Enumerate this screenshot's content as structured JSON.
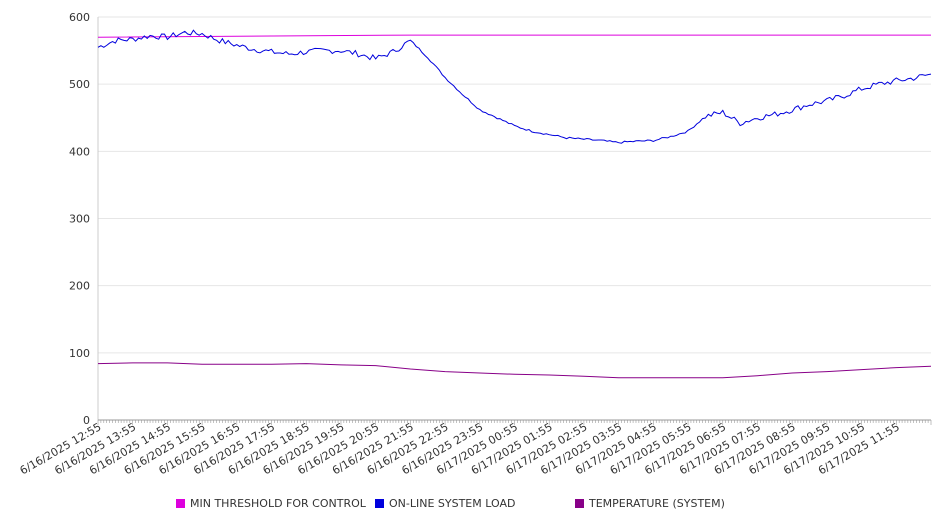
{
  "chart_data": {
    "type": "line",
    "title": "",
    "xlabel": "",
    "ylabel": "",
    "ylim": [
      0,
      600
    ],
    "y_ticks": [
      "0",
      "100",
      "200",
      "300",
      "400",
      "500",
      "600"
    ],
    "x_tick_labels": [
      "6/16/2025 12:55",
      "6/16/2025 13:55",
      "6/16/2025 14:55",
      "6/16/2025 15:55",
      "6/16/2025 16:55",
      "6/16/2025 17:55",
      "6/16/2025 18:55",
      "6/16/2025 19:55",
      "6/16/2025 20:55",
      "6/16/2025 21:55",
      "6/16/2025 22:55",
      "6/16/2025 23:55",
      "6/17/2025 00:55",
      "6/17/2025 01:55",
      "6/17/2025 02:55",
      "6/17/2025 03:55",
      "6/17/2025 04:55",
      "6/17/2025 05:55",
      "6/17/2025 06:55",
      "6/17/2025 07:55",
      "6/17/2025 08:55",
      "6/17/2025 09:55",
      "6/17/2025 10:55",
      "6/17/2025 11:55"
    ],
    "grid": true,
    "legend_position": "bottom",
    "series": [
      {
        "name": "MIN THRESHOLD FOR CONTROL",
        "color": "#dd00dd",
        "x": [
          "6/16/2025 12:55",
          "6/16/2025 21:55",
          "6/17/2025 12:55"
        ],
        "values": [
          570,
          573,
          573
        ]
      },
      {
        "name": "ON-LINE SYSTEM LOAD",
        "color": "#0000dd",
        "x": [
          "6/16/2025 12:55",
          "6/16/2025 13:25",
          "6/16/2025 13:55",
          "6/16/2025 14:25",
          "6/16/2025 14:55",
          "6/16/2025 15:25",
          "6/16/2025 15:55",
          "6/16/2025 16:25",
          "6/16/2025 16:55",
          "6/16/2025 17:25",
          "6/16/2025 17:55",
          "6/16/2025 18:25",
          "6/16/2025 18:55",
          "6/16/2025 19:25",
          "6/16/2025 19:55",
          "6/16/2025 20:25",
          "6/16/2025 20:55",
          "6/16/2025 21:25",
          "6/16/2025 21:55",
          "6/16/2025 22:25",
          "6/16/2025 22:55",
          "6/16/2025 23:25",
          "6/16/2025 23:55",
          "6/17/2025 00:25",
          "6/17/2025 00:55",
          "6/17/2025 01:25",
          "6/17/2025 01:55",
          "6/17/2025 02:25",
          "6/17/2025 02:55",
          "6/17/2025 03:25",
          "6/17/2025 03:55",
          "6/17/2025 04:25",
          "6/17/2025 04:55",
          "6/17/2025 05:25",
          "6/17/2025 05:55",
          "6/17/2025 06:25",
          "6/17/2025 06:55",
          "6/17/2025 07:25",
          "6/17/2025 07:55",
          "6/17/2025 08:25",
          "6/17/2025 08:55",
          "6/17/2025 09:25",
          "6/17/2025 09:55",
          "6/17/2025 10:25",
          "6/17/2025 10:55",
          "6/17/2025 11:25",
          "6/17/2025 11:55",
          "6/17/2025 12:25",
          "6/17/2025 12:55"
        ],
        "values": [
          555,
          565,
          567,
          572,
          570,
          577,
          575,
          565,
          558,
          552,
          548,
          545,
          548,
          550,
          550,
          545,
          538,
          548,
          565,
          540,
          510,
          485,
          462,
          450,
          438,
          430,
          425,
          420,
          418,
          416,
          413,
          415,
          416,
          422,
          430,
          452,
          458,
          442,
          450,
          455,
          462,
          470,
          475,
          483,
          493,
          500,
          505,
          509,
          515
        ]
      },
      {
        "name": "TEMPERATURE (SYSTEM)",
        "color": "#880088",
        "x": [
          "6/16/2025 12:55",
          "6/16/2025 13:55",
          "6/16/2025 14:55",
          "6/16/2025 15:55",
          "6/16/2025 16:55",
          "6/16/2025 17:55",
          "6/16/2025 18:55",
          "6/16/2025 19:55",
          "6/16/2025 20:55",
          "6/16/2025 21:55",
          "6/16/2025 22:55",
          "6/16/2025 23:55",
          "6/17/2025 00:55",
          "6/17/2025 01:55",
          "6/17/2025 02:55",
          "6/17/2025 03:55",
          "6/17/2025 04:55",
          "6/17/2025 05:55",
          "6/17/2025 06:55",
          "6/17/2025 07:55",
          "6/17/2025 08:55",
          "6/17/2025 09:55",
          "6/17/2025 10:55",
          "6/17/2025 11:55",
          "6/17/2025 12:55"
        ],
        "values": [
          84,
          85,
          85,
          83,
          83,
          83,
          84,
          82,
          81,
          76,
          72,
          70,
          68,
          67,
          65,
          63,
          63,
          63,
          63,
          66,
          70,
          72,
          75,
          78,
          80
        ]
      }
    ]
  }
}
